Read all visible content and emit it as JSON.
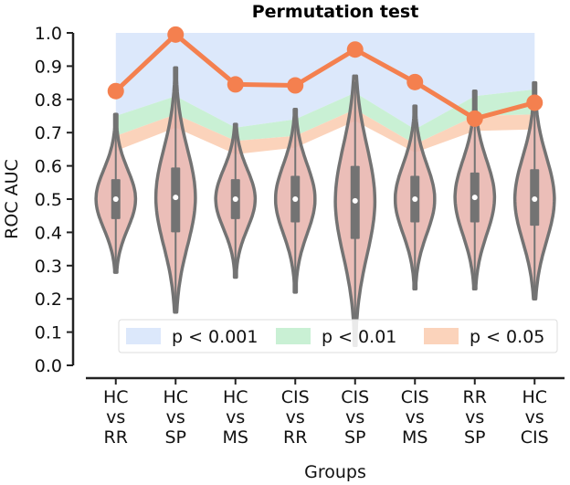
{
  "chart_data": {
    "type": "violin",
    "title": "Permutation test",
    "xlabel": "Groups",
    "ylabel": "ROC AUC",
    "ylim": [
      0.0,
      1.0
    ],
    "yticks": [
      "0.0",
      "0.1",
      "0.2",
      "0.3",
      "0.4",
      "0.5",
      "0.6",
      "0.7",
      "0.8",
      "0.9",
      "1.0"
    ],
    "categories": [
      [
        "HC",
        "vs",
        "RR"
      ],
      [
        "HC",
        "vs",
        "SP"
      ],
      [
        "HC",
        "vs",
        "MS"
      ],
      [
        "CIS",
        "vs",
        "RR"
      ],
      [
        "CIS",
        "vs",
        "SP"
      ],
      [
        "CIS",
        "vs",
        "MS"
      ],
      [
        "RR",
        "vs",
        "SP"
      ],
      [
        "HC",
        "vs",
        "CIS"
      ]
    ],
    "observed_auc": [
      0.825,
      0.995,
      0.845,
      0.842,
      0.95,
      0.852,
      0.742,
      0.79
    ],
    "thresholds": {
      "p_001": [
        0.75,
        0.81,
        0.715,
        0.74,
        0.82,
        0.71,
        0.81,
        0.83
      ],
      "p_01": [
        0.69,
        0.755,
        0.675,
        0.69,
        0.77,
        0.665,
        0.75,
        0.755
      ],
      "p_05": [
        0.645,
        0.715,
        0.635,
        0.655,
        0.735,
        0.64,
        0.705,
        0.71
      ]
    },
    "violins": [
      {
        "min": 0.28,
        "q1": 0.44,
        "median": 0.5,
        "q3": 0.56,
        "max": 0.755
      },
      {
        "min": 0.16,
        "q1": 0.4,
        "median": 0.505,
        "q3": 0.595,
        "max": 0.895
      },
      {
        "min": 0.265,
        "q1": 0.44,
        "median": 0.5,
        "q3": 0.56,
        "max": 0.725
      },
      {
        "min": 0.22,
        "q1": 0.43,
        "median": 0.5,
        "q3": 0.57,
        "max": 0.77
      },
      {
        "min": 0.06,
        "q1": 0.38,
        "median": 0.495,
        "q3": 0.6,
        "max": 0.87
      },
      {
        "min": 0.23,
        "q1": 0.43,
        "median": 0.5,
        "q3": 0.57,
        "max": 0.78
      },
      {
        "min": 0.23,
        "q1": 0.43,
        "median": 0.505,
        "q3": 0.58,
        "max": 0.825
      },
      {
        "min": 0.2,
        "q1": 0.42,
        "median": 0.5,
        "q3": 0.59,
        "max": 0.85
      }
    ],
    "legend": {
      "placement": "bottom-center",
      "entries": [
        "p < 0.001",
        "p < 0.01",
        "p < 0.05"
      ]
    },
    "colors": {
      "p_001": "#dce8fb",
      "p_01": "#c9f0d4",
      "p_05": "#fbd3bb",
      "observed_line": "#f4804f",
      "violin_fill": "#e7b3ac",
      "violin_edge": "#737373",
      "box": "#737373",
      "median": "#ffffff"
    }
  }
}
